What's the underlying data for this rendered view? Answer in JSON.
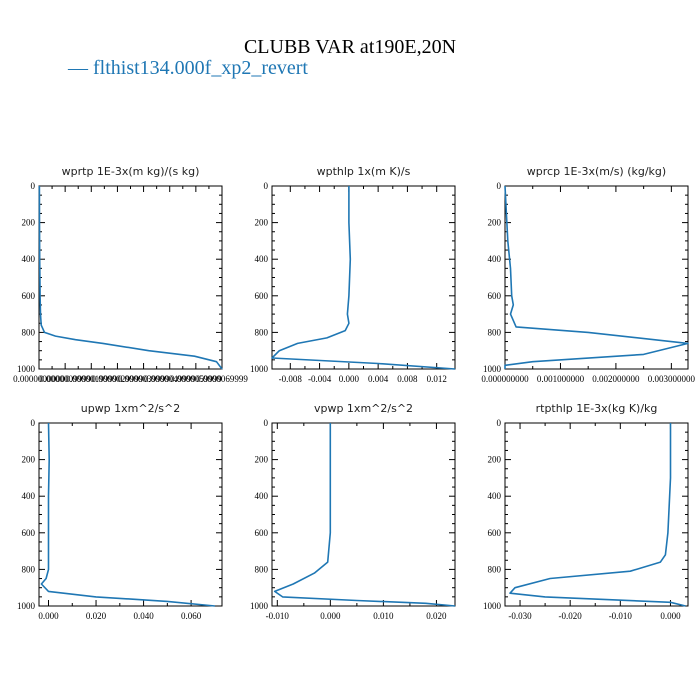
{
  "header": {
    "title": "CLUBB VAR at190E,20N",
    "legend_label": "— flthist134.000f_xp2_revert"
  },
  "colors": {
    "series": "#1f77b4",
    "axes": "#000000"
  },
  "chart_data": [
    {
      "type": "line",
      "title": "wprtp  1E-3x(m kg)/(s kg)",
      "series_name": "flthist134.000f_xp2_revert",
      "ylim": [
        1000,
        0
      ],
      "yticks": [
        0,
        200,
        400,
        600,
        800,
        1000
      ],
      "xlim": [
        0.0,
        1.0
      ],
      "xticks": [
        0.0,
        0.1429,
        0.2857,
        0.4286,
        0.5714,
        0.7143,
        0.8571,
        1.0
      ],
      "xtick_labels": [
        "0.0000000000",
        "0.0000009999",
        "0.0000019999",
        "0.0000029999",
        "0.0000039999",
        "0.0000049999",
        "0.0000059999",
        "0.0000069999"
      ],
      "x": [
        0.002,
        0.003,
        0.004,
        0.006,
        0.008,
        0.012,
        0.03,
        0.09,
        0.2,
        0.35,
        0.6,
        0.85,
        0.97,
        1.0
      ],
      "y": [
        0,
        200,
        400,
        600,
        700,
        760,
        800,
        820,
        840,
        860,
        900,
        930,
        960,
        1000
      ]
    },
    {
      "type": "line",
      "title": "wpthlp  1x(m K)/s",
      "series_name": "flthist134.000f_xp2_revert",
      "ylim": [
        1000,
        0
      ],
      "yticks": [
        0,
        200,
        400,
        600,
        800,
        1000
      ],
      "xlim": [
        -0.0105,
        0.0145
      ],
      "xticks": [
        -0.008,
        -0.004,
        0.0,
        0.004,
        0.008,
        0.012
      ],
      "xtick_labels": [
        "-0.008",
        "-0.004",
        "0.000",
        "0.004",
        "0.008",
        "0.012"
      ],
      "x": [
        0.0,
        0.0,
        0.0002,
        0.0,
        -0.0002,
        0.0,
        -0.0005,
        -0.003,
        -0.007,
        -0.0095,
        -0.0105,
        0.004,
        0.0145
      ],
      "y": [
        0,
        200,
        400,
        600,
        700,
        750,
        790,
        830,
        860,
        900,
        940,
        970,
        1000
      ]
    },
    {
      "type": "line",
      "title": "wprcp  1E-3x(m/s) (kg/kg)",
      "series_name": "flthist134.000f_xp2_revert",
      "ylim": [
        1000,
        0
      ],
      "yticks": [
        0,
        200,
        400,
        600,
        800,
        1000
      ],
      "xlim": [
        0.0,
        0.0033
      ],
      "xticks": [
        0.0,
        0.001,
        0.002,
        0.003
      ],
      "xtick_labels": [
        "0.000000000",
        "0.001000000",
        "0.002000000",
        "0.003000000"
      ],
      "x": [
        0.0,
        5e-05,
        0.0001,
        0.00012,
        0.00015,
        0.0001,
        0.0002,
        0.0015,
        0.0033,
        0.0025,
        0.0005,
        0.0,
        0.0
      ],
      "y": [
        0,
        300,
        450,
        600,
        650,
        700,
        770,
        800,
        860,
        920,
        960,
        980,
        1000
      ]
    },
    {
      "type": "line",
      "title": "upwp  1xm^2/s^2",
      "series_name": "flthist134.000f_xp2_revert",
      "ylim": [
        1000,
        0
      ],
      "yticks": [
        0,
        200,
        400,
        600,
        800,
        1000
      ],
      "xlim": [
        -0.004,
        0.073
      ],
      "xticks": [
        0.0,
        0.02,
        0.04,
        0.06
      ],
      "xtick_labels": [
        "0.000",
        "0.020",
        "0.040",
        "0.060"
      ],
      "x": [
        0.0,
        0.0003,
        0.0,
        0.0,
        0.0,
        0.0,
        -0.001,
        -0.003,
        0.0,
        0.02,
        0.05,
        0.07
      ],
      "y": [
        0,
        200,
        400,
        600,
        760,
        800,
        850,
        880,
        920,
        950,
        975,
        1000
      ]
    },
    {
      "type": "line",
      "title": "vpwp  1xm^2/s^2",
      "series_name": "flthist134.000f_xp2_revert",
      "ylim": [
        1000,
        0
      ],
      "yticks": [
        0,
        200,
        400,
        600,
        800,
        1000
      ],
      "xlim": [
        -0.011,
        0.0235
      ],
      "xticks": [
        -0.01,
        0.0,
        0.01,
        0.02
      ],
      "xtick_labels": [
        "-0.010",
        "0.000",
        "0.010",
        "0.020"
      ],
      "x": [
        0.0,
        0.0,
        0.0,
        0.0,
        -0.0005,
        -0.003,
        -0.007,
        -0.0105,
        -0.009,
        0.005,
        0.018,
        0.0235
      ],
      "y": [
        0,
        200,
        400,
        600,
        760,
        820,
        880,
        920,
        950,
        970,
        985,
        1000
      ]
    },
    {
      "type": "line",
      "title": "rtpthlp  1E-3x(kg K)/kg",
      "series_name": "flthist134.000f_xp2_revert",
      "ylim": [
        1000,
        0
      ],
      "yticks": [
        0,
        200,
        400,
        600,
        800,
        1000
      ],
      "xlim": [
        -0.033,
        0.0035
      ],
      "xticks": [
        -0.03,
        -0.02,
        -0.01,
        0.0
      ],
      "xtick_labels": [
        "-0.030",
        "-0.020",
        "-0.010",
        "0.000"
      ],
      "x": [
        0.0,
        0.0,
        -0.0005,
        -0.001,
        -0.002,
        -0.008,
        -0.024,
        -0.031,
        -0.032,
        -0.025,
        0.0,
        0.003
      ],
      "y": [
        0,
        300,
        600,
        720,
        760,
        810,
        850,
        900,
        930,
        950,
        980,
        1000
      ]
    }
  ]
}
